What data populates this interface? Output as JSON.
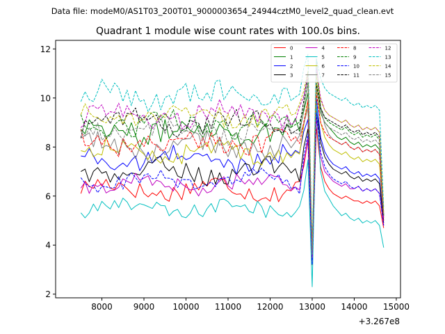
{
  "chart_data": {
    "type": "line",
    "suptitle": "Data file: modeM0/AS1T03_200T01_9000003654_24944cztM0_level2_quad_clean.evt",
    "title": "Quadrant 1 module wise count rates with 100.0s bins.",
    "xlabel": "",
    "ylabel": "",
    "offset_label": "+3.267e8",
    "xlim": [
      6900,
      15100
    ],
    "ylim": [
      1.85,
      12.35
    ],
    "xticks": [
      8000,
      9000,
      10000,
      11000,
      12000,
      13000,
      14000,
      15000
    ],
    "yticks": [
      2,
      4,
      6,
      8,
      10,
      12
    ],
    "xtick_labels": [
      "8000",
      "9000",
      "10000",
      "11000",
      "12000",
      "13000",
      "14000",
      "15000"
    ],
    "ytick_labels": [
      "2",
      "4",
      "6",
      "8",
      "10",
      "12"
    ],
    "grid": false,
    "legend_position": "top-right",
    "segments": [
      {
        "start": 7500,
        "end": 12900,
        "step": 100
      },
      {
        "start": 13000,
        "end": 13000,
        "step": 100
      },
      {
        "start": 13100,
        "end": 14700,
        "step": 100
      }
    ],
    "series": [
      {
        "name": "0",
        "color": "#ff0000",
        "dash": "solid",
        "mean": 6.3,
        "amp": 0.35,
        "seg2": [
          3.2
        ],
        "seg3": [
          8.8,
          7.2,
          6.6,
          6.3,
          6.1,
          6.0,
          5.9,
          6.0,
          5.9,
          5.8,
          5.8,
          5.7,
          5.8,
          5.7,
          5.8,
          5.6,
          4.7
        ]
      },
      {
        "name": "1",
        "color": "#008000",
        "dash": "solid",
        "mean": 8.7,
        "amp": 0.45,
        "seg2": [
          3.6
        ],
        "seg3": [
          10.4,
          9.4,
          9.0,
          8.8,
          8.6,
          8.4,
          8.3,
          8.4,
          8.2,
          8.1,
          8.2,
          8.0,
          8.1,
          8.0,
          8.1,
          7.9,
          5.2
        ]
      },
      {
        "name": "2",
        "color": "#0000ff",
        "dash": "solid",
        "mean": 7.5,
        "amp": 0.35,
        "seg2": [
          3.4
        ],
        "seg3": [
          10.0,
          8.4,
          7.8,
          7.5,
          7.3,
          7.2,
          7.1,
          7.2,
          7.0,
          6.9,
          7.0,
          6.8,
          6.9,
          6.8,
          6.9,
          6.7,
          5.0
        ]
      },
      {
        "name": "3",
        "color": "#000000",
        "dash": "solid",
        "mean": 7.0,
        "amp": 0.35,
        "seg2": [
          3.5
        ],
        "seg3": [
          9.6,
          8.2,
          7.6,
          7.3,
          7.1,
          7.0,
          6.9,
          7.0,
          6.8,
          6.7,
          6.8,
          6.6,
          6.7,
          6.6,
          6.7,
          6.5,
          4.9
        ]
      },
      {
        "name": "4",
        "color": "#bf00bf",
        "dash": "solid",
        "mean": 6.5,
        "amp": 0.3,
        "seg2": [
          3.3
        ],
        "seg3": [
          9.2,
          7.6,
          7.0,
          6.8,
          6.6,
          6.5,
          6.4,
          6.5,
          6.3,
          6.3,
          6.4,
          6.2,
          6.3,
          6.2,
          6.3,
          6.1,
          4.8
        ]
      },
      {
        "name": "5",
        "color": "#00bfbf",
        "dash": "solid",
        "mean": 5.5,
        "amp": 0.3,
        "seg2": [
          2.3
        ],
        "seg3": [
          9.8,
          7.0,
          6.2,
          5.9,
          5.6,
          5.4,
          5.2,
          5.3,
          5.1,
          5.0,
          5.1,
          4.9,
          5.0,
          4.9,
          5.0,
          4.8,
          3.9
        ]
      },
      {
        "name": "6",
        "color": "#bfbf00",
        "dash": "solid",
        "mean": 7.8,
        "amp": 0.35,
        "seg2": [
          3.7
        ],
        "seg3": [
          10.6,
          9.0,
          8.4,
          8.1,
          7.9,
          7.8,
          7.7,
          7.8,
          7.6,
          7.5,
          7.6,
          7.4,
          7.5,
          7.4,
          7.5,
          7.3,
          5.1
        ]
      },
      {
        "name": "7",
        "color": "#808080",
        "dash": "solid",
        "mean": 8.0,
        "amp": 0.4,
        "seg2": [
          3.6
        ],
        "seg3": [
          11.6,
          9.6,
          8.9,
          8.5,
          8.3,
          8.2,
          8.1,
          8.2,
          8.0,
          7.9,
          8.0,
          7.8,
          7.9,
          7.8,
          7.9,
          7.7,
          5.2
        ]
      },
      {
        "name": "8",
        "color": "#ff0000",
        "dash": "dashed",
        "mean": 8.2,
        "amp": 0.4,
        "seg2": [
          3.5
        ],
        "seg3": [
          10.2,
          9.0,
          8.6,
          8.4,
          8.3,
          8.2,
          8.1,
          8.2,
          8.0,
          7.9,
          8.0,
          7.8,
          7.9,
          7.8,
          7.9,
          7.7,
          5.0
        ]
      },
      {
        "name": "9",
        "color": "#008000",
        "dash": "dashed",
        "mean": 8.9,
        "amp": 0.4,
        "seg2": [
          3.6
        ],
        "seg3": [
          11.0,
          9.6,
          9.2,
          9.0,
          8.9,
          8.8,
          8.7,
          8.8,
          8.6,
          8.5,
          8.6,
          8.4,
          8.5,
          8.4,
          8.5,
          8.3,
          5.2
        ]
      },
      {
        "name": "10",
        "color": "#0000ff",
        "dash": "dashed",
        "mean": 6.6,
        "amp": 0.3,
        "seg2": [
          3.2
        ],
        "seg3": [
          9.4,
          7.8,
          7.2,
          6.9,
          6.7,
          6.6,
          6.5,
          6.6,
          6.4,
          6.3,
          6.4,
          6.2,
          6.3,
          6.2,
          6.3,
          6.1,
          4.8
        ]
      },
      {
        "name": "11",
        "color": "#000000",
        "dash": "dashed",
        "mean": 9.0,
        "amp": 0.35,
        "seg2": [
          3.7
        ],
        "seg3": [
          10.6,
          9.6,
          9.2,
          9.1,
          9.0,
          8.9,
          8.8,
          8.9,
          8.7,
          8.6,
          8.7,
          8.5,
          8.6,
          8.5,
          8.6,
          8.4,
          5.3
        ]
      },
      {
        "name": "12",
        "color": "#bf00bf",
        "dash": "dashed",
        "mean": 9.3,
        "amp": 0.4,
        "seg2": [
          3.5
        ],
        "seg3": [
          11.2,
          10.0,
          9.5,
          9.3,
          9.2,
          9.1,
          9.0,
          9.1,
          8.9,
          8.8,
          8.9,
          8.7,
          8.8,
          8.7,
          8.8,
          8.6,
          5.1
        ]
      },
      {
        "name": "13",
        "color": "#00bfbf",
        "dash": "dashed",
        "mean": 10.1,
        "amp": 0.45,
        "seg2": [
          3.9
        ],
        "seg3": [
          11.6,
          10.8,
          10.4,
          10.2,
          10.1,
          10.0,
          9.9,
          10.0,
          9.8,
          9.7,
          9.8,
          9.6,
          9.7,
          9.6,
          9.7,
          9.5,
          5.5
        ]
      },
      {
        "name": "14",
        "color": "#bfbf00",
        "dash": "dashed",
        "mean": 9.3,
        "amp": 0.35,
        "seg2": [
          3.8
        ],
        "seg3": [
          11.0,
          9.9,
          9.5,
          9.3,
          9.2,
          9.1,
          9.0,
          9.1,
          8.9,
          8.8,
          8.9,
          8.7,
          8.8,
          8.7,
          8.8,
          8.6,
          5.3
        ]
      },
      {
        "name": "15",
        "color": "#808080",
        "dash": "dashed",
        "mean": 8.7,
        "amp": 0.4,
        "seg2": [
          3.6
        ],
        "seg3": [
          10.4,
          9.4,
          9.0,
          8.8,
          8.7,
          8.6,
          8.5,
          8.6,
          8.4,
          8.3,
          8.4,
          8.2,
          8.3,
          8.2,
          8.3,
          8.1,
          5.2
        ]
      }
    ]
  }
}
